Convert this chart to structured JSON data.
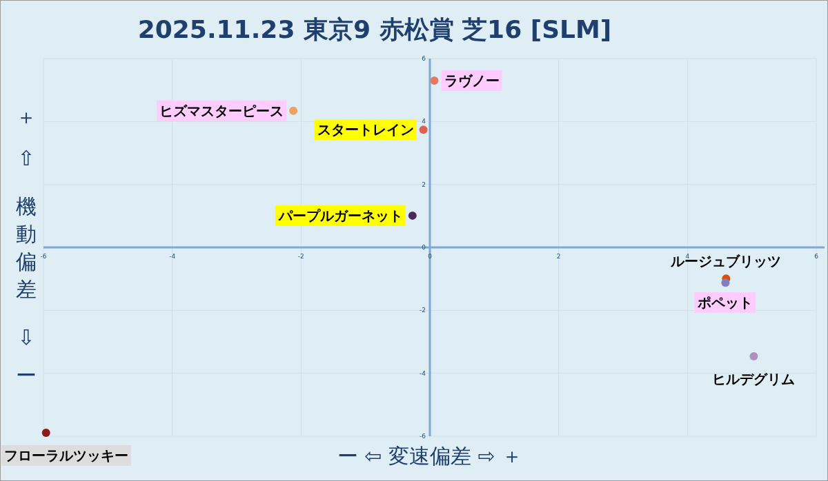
{
  "chart_data": {
    "type": "scatter",
    "title": "2025.11.23 東京9 赤松賞 芝16 [SLM]",
    "xlabel": "ー ⇦ 変速偏差 ⇨ ＋",
    "ylabel": "＋ ⇧ 機動偏差 ⇩ ー",
    "xlim": [
      -6,
      6
    ],
    "ylim": [
      -6,
      6
    ],
    "xticks": [
      -6,
      -4,
      -2,
      0,
      2,
      4,
      6
    ],
    "yticks": [
      -6,
      -4,
      -2,
      0,
      2,
      4,
      6
    ],
    "grid": true,
    "marker": "circle",
    "series": [
      {
        "name": "ラヴノー",
        "color": "#e07a6a",
        "x": [
          0.07
        ],
        "values": [
          5.3
        ]
      },
      {
        "name": "ヒズマスターピース",
        "color": "#f0a060",
        "x": [
          -2.12
        ],
        "values": [
          4.34
        ]
      },
      {
        "name": "スタートレイン",
        "color": "#e06050",
        "x": [
          -0.1
        ],
        "values": [
          3.74
        ]
      },
      {
        "name": "パープルガーネット",
        "color": "#4a2a5a",
        "x": [
          -0.27
        ],
        "values": [
          1.01
        ]
      },
      {
        "name": "ルージュブリッツ",
        "color": "#d85010",
        "x": [
          4.6
        ],
        "values": [
          -0.99
        ]
      },
      {
        "name": "ポペット",
        "color": "#8080c0",
        "x": [
          4.59
        ],
        "values": [
          -1.12
        ]
      },
      {
        "name": "ヒルデグリム",
        "color": "#b090c0",
        "x": [
          5.03
        ],
        "values": [
          -3.46
        ]
      },
      {
        "name": "フローラルツッキー",
        "color": "#8b1a1a",
        "x": [
          -5.96
        ],
        "values": [
          -5.89
        ]
      }
    ]
  }
}
